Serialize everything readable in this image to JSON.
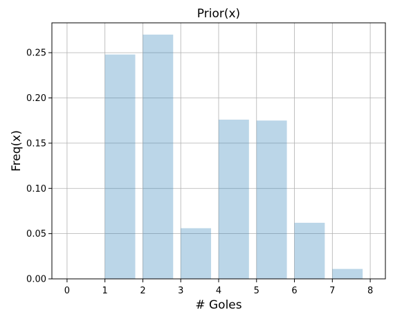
{
  "chart_data": {
    "type": "bar",
    "title": "Prior(x)",
    "xlabel": "# Goles",
    "ylabel": "Freq(x)",
    "x": [
      1,
      2,
      3,
      4,
      5,
      6,
      7
    ],
    "values": [
      0.248,
      0.27,
      0.056,
      0.176,
      0.175,
      0.062,
      0.011
    ],
    "bar_width": 0.8,
    "bar_align": "left",
    "xlim": [
      -0.4,
      8.4
    ],
    "ylim": [
      0,
      0.283
    ],
    "xticks": [
      0,
      1,
      2,
      3,
      4,
      5,
      6,
      7,
      8
    ],
    "xtick_labels": [
      "0",
      "1",
      "2",
      "3",
      "4",
      "5",
      "6",
      "7",
      "8"
    ],
    "yticks": [
      0,
      0.05,
      0.1,
      0.15,
      0.2,
      0.25
    ],
    "ytick_labels": [
      "0.00",
      "0.05",
      "0.10",
      "0.15",
      "0.20",
      "0.25"
    ],
    "grid": true,
    "bar_color": "#1f77b4",
    "bar_opacity": 0.3,
    "grid_color": "#b0b0b0"
  }
}
